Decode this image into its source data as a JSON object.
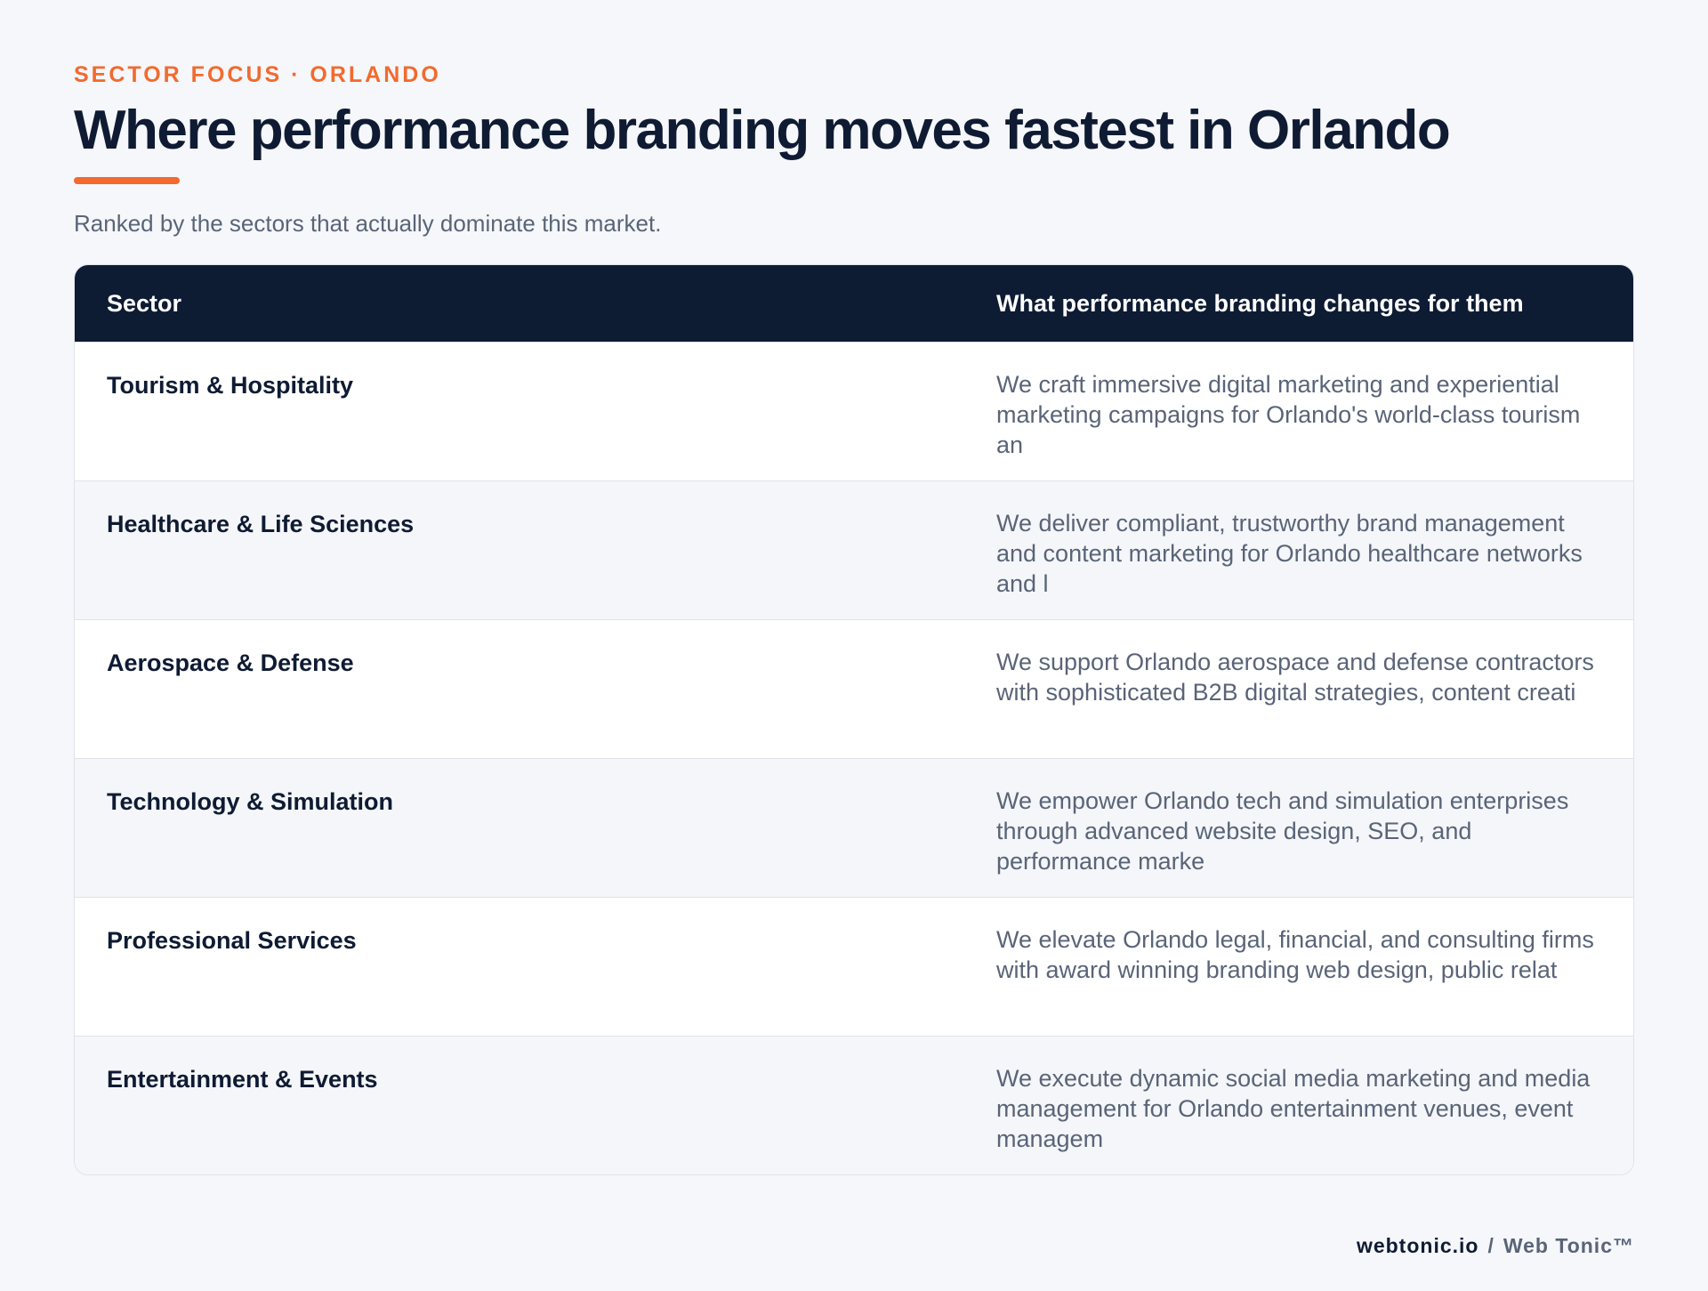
{
  "header": {
    "eyebrow": "SECTOR FOCUS · ORLANDO",
    "title": "Where performance branding moves fastest in Orlando",
    "subtitle": "Ranked by the sectors that actually dominate this market."
  },
  "table": {
    "columns": [
      "Sector",
      "What performance branding changes for them"
    ],
    "rows": [
      {
        "sector": "Tourism & Hospitality",
        "description": "We craft immersive digital marketing and experiential marketing campaigns for Orlando's world-class tourism an"
      },
      {
        "sector": "Healthcare & Life Sciences",
        "description": "We deliver compliant, trustworthy brand management and content marketing for Orlando healthcare networks and l"
      },
      {
        "sector": "Aerospace & Defense",
        "description": "We support Orlando aerospace and defense contractors with sophisticated B2B digital strategies, content creati"
      },
      {
        "sector": "Technology & Simulation",
        "description": "We empower Orlando tech and simulation enterprises through advanced website design, SEO, and performance marke"
      },
      {
        "sector": "Professional Services",
        "description": "We elevate Orlando legal, financial, and consulting firms with award winning branding web design, public relat"
      },
      {
        "sector": "Entertainment & Events",
        "description": "We execute dynamic social media marketing and media management for Orlando entertainment venues, event managem"
      }
    ]
  },
  "footer": {
    "domain": "webtonic.io",
    "separator": "/",
    "brand": "Web Tonic™"
  },
  "colors": {
    "accent": "#f26a2e",
    "navy": "#0d1b33",
    "muted": "#5a6478",
    "background": "#f5f7fa"
  }
}
